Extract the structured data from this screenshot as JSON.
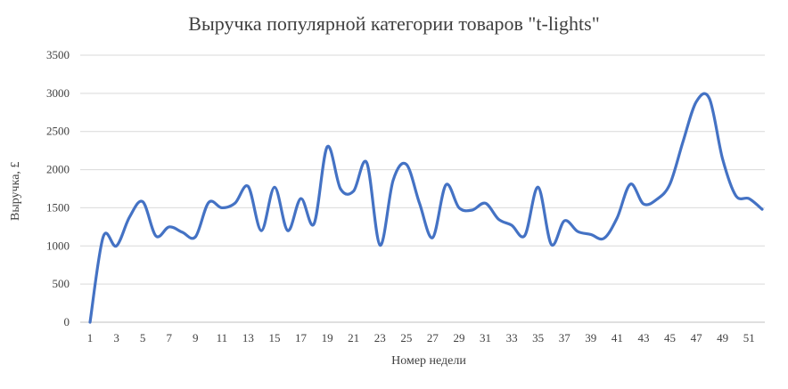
{
  "chart_data": {
    "type": "line",
    "title": "Выручка популярной категории товаров \"t-lights\"",
    "xlabel": "Номер недели",
    "ylabel": "Выручка, £",
    "ylim": [
      0,
      3500
    ],
    "yticks": [
      0,
      500,
      1000,
      1500,
      2000,
      2500,
      3000,
      3500
    ],
    "xlim": [
      1,
      52
    ],
    "xticks": [
      1,
      3,
      5,
      7,
      9,
      11,
      13,
      15,
      17,
      19,
      21,
      23,
      25,
      27,
      29,
      31,
      33,
      35,
      37,
      39,
      41,
      43,
      45,
      47,
      49,
      51
    ],
    "grid": true,
    "line_color": "#4472c4",
    "x": [
      1,
      2,
      3,
      4,
      5,
      6,
      7,
      8,
      9,
      10,
      11,
      12,
      13,
      14,
      15,
      16,
      17,
      18,
      19,
      20,
      21,
      22,
      23,
      24,
      25,
      26,
      27,
      28,
      29,
      30,
      31,
      32,
      33,
      34,
      35,
      36,
      37,
      38,
      39,
      40,
      41,
      42,
      43,
      44,
      45,
      46,
      47,
      48,
      49,
      50,
      51,
      52
    ],
    "values": [
      0,
      1120,
      1000,
      1380,
      1580,
      1130,
      1250,
      1180,
      1120,
      1570,
      1500,
      1560,
      1780,
      1200,
      1770,
      1200,
      1620,
      1290,
      2300,
      1750,
      1720,
      2090,
      1010,
      1860,
      2070,
      1560,
      1110,
      1800,
      1500,
      1470,
      1560,
      1350,
      1270,
      1140,
      1770,
      1020,
      1330,
      1190,
      1150,
      1100,
      1370,
      1810,
      1550,
      1610,
      1810,
      2370,
      2890,
      2930,
      2140,
      1660,
      1620,
      1480
    ]
  }
}
